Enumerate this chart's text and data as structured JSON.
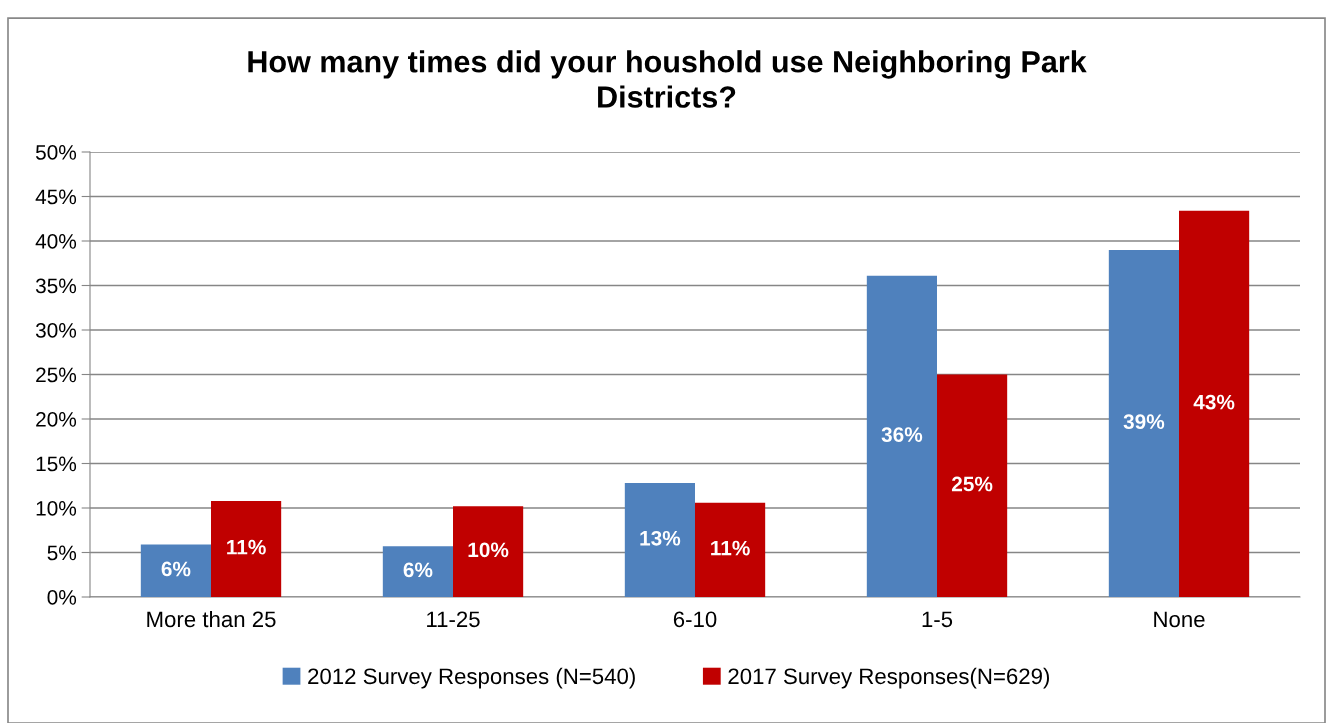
{
  "chart_data": {
    "type": "bar",
    "title": "How many times did your houshold use Neighboring Park\nDistricts?",
    "categories": [
      "More than 25",
      "11-25",
      "6-10",
      "1-5",
      "None"
    ],
    "series": [
      {
        "name": "2012 Survey Responses (N=540)",
        "color": "#4f81bd",
        "values": [
          5.9,
          5.7,
          12.8,
          36.1,
          39.0
        ],
        "value_labels": [
          "6%",
          "6%",
          "13%",
          "36%",
          "39%"
        ]
      },
      {
        "name": "2017 Survey Responses(N=629)",
        "color": "#c00000",
        "values": [
          10.8,
          10.2,
          10.6,
          25.0,
          43.4
        ],
        "value_labels": [
          "11%",
          "10%",
          "11%",
          "25%",
          "43%"
        ]
      }
    ],
    "ylim": [
      0,
      50
    ],
    "yticks": [
      {
        "value": 0,
        "label": "0%"
      },
      {
        "value": 5,
        "label": "5%"
      },
      {
        "value": 10,
        "label": "10%"
      },
      {
        "value": 15,
        "label": "15%"
      },
      {
        "value": 20,
        "label": "20%"
      },
      {
        "value": 25,
        "label": "25%"
      },
      {
        "value": 30,
        "label": "30%"
      },
      {
        "value": 35,
        "label": "35%"
      },
      {
        "value": 40,
        "label": "40%"
      },
      {
        "value": 45,
        "label": "45%"
      },
      {
        "value": 50,
        "label": "50%"
      }
    ],
    "grid": "y",
    "legend": "bottom"
  }
}
